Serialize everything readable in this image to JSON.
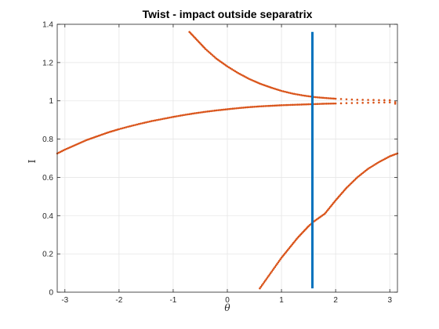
{
  "chart_data": {
    "type": "scatter",
    "title": "Twist - impact outside separatrix",
    "xlabel": "θ",
    "ylabel": "I",
    "xlim": [
      -3.14159,
      3.14159
    ],
    "ylim": [
      0,
      1.4
    ],
    "xticks": [
      -3,
      -2,
      -1,
      0,
      1,
      2,
      3
    ],
    "xtick_labels": [
      "-3",
      "-2",
      "-1",
      "0",
      "1",
      "2",
      "3"
    ],
    "yticks": [
      0,
      0.2,
      0.4,
      0.6,
      0.8,
      1,
      1.2,
      1.4
    ],
    "ytick_labels": [
      "0",
      "0.2",
      "0.4",
      "0.6",
      "0.8",
      "1",
      "1.2",
      "1.4"
    ],
    "grid": true,
    "colors": {
      "orbit": "#D95319",
      "impact_line": "#0072BD",
      "grid": "#E6E6E6",
      "axes": "#262626"
    },
    "impact_line": {
      "x": 1.5708,
      "y_range": [
        0.02,
        1.36
      ]
    },
    "series": [
      {
        "style": "dots",
        "points": [
          [
            -3.14,
            0.725
          ],
          [
            -3.0,
            0.745
          ],
          [
            -2.8,
            0.77
          ],
          [
            -2.6,
            0.795
          ],
          [
            -2.4,
            0.815
          ],
          [
            -2.2,
            0.835
          ],
          [
            -2.0,
            0.852
          ],
          [
            -1.8,
            0.867
          ],
          [
            -1.6,
            0.881
          ],
          [
            -1.4,
            0.894
          ],
          [
            -1.2,
            0.905
          ],
          [
            -1.0,
            0.916
          ],
          [
            -0.8,
            0.926
          ],
          [
            -0.6,
            0.935
          ],
          [
            -0.4,
            0.943
          ],
          [
            -0.2,
            0.95
          ],
          [
            0.0,
            0.956
          ],
          [
            0.2,
            0.962
          ],
          [
            0.4,
            0.967
          ],
          [
            0.6,
            0.971
          ],
          [
            0.8,
            0.974
          ],
          [
            1.0,
            0.977
          ],
          [
            1.2,
            0.979
          ],
          [
            1.4,
            0.981
          ],
          [
            1.6,
            0.983
          ],
          [
            1.8,
            0.985
          ],
          [
            2.0,
            0.986
          ],
          [
            2.2,
            0.988
          ],
          [
            2.4,
            0.989
          ],
          [
            2.6,
            0.99
          ],
          [
            2.8,
            0.991
          ],
          [
            3.0,
            0.992
          ],
          [
            3.1,
            0.993
          ]
        ]
      },
      {
        "style": "dots",
        "points": [
          [
            -0.7,
            1.36
          ],
          [
            -0.6,
            1.33
          ],
          [
            -0.5,
            1.3
          ],
          [
            -0.4,
            1.27
          ],
          [
            -0.3,
            1.245
          ],
          [
            -0.2,
            1.22
          ],
          [
            -0.1,
            1.2
          ],
          [
            0.0,
            1.18
          ],
          [
            0.2,
            1.145
          ],
          [
            0.4,
            1.115
          ],
          [
            0.6,
            1.09
          ],
          [
            0.8,
            1.07
          ],
          [
            1.0,
            1.052
          ],
          [
            1.2,
            1.038
          ],
          [
            1.4,
            1.028
          ],
          [
            1.6,
            1.02
          ],
          [
            1.8,
            1.015
          ],
          [
            2.0,
            1.011
          ],
          [
            2.2,
            1.008
          ],
          [
            2.4,
            1.006
          ],
          [
            2.6,
            1.005
          ],
          [
            2.8,
            1.004
          ],
          [
            3.0,
            1.003
          ],
          [
            3.1,
            0.985
          ]
        ]
      },
      {
        "style": "dots",
        "points": [
          [
            0.6,
            0.02
          ],
          [
            0.7,
            0.06
          ],
          [
            0.8,
            0.1
          ],
          [
            0.9,
            0.14
          ],
          [
            1.0,
            0.18
          ],
          [
            1.1,
            0.215
          ],
          [
            1.2,
            0.25
          ],
          [
            1.3,
            0.285
          ],
          [
            1.4,
            0.315
          ],
          [
            1.5,
            0.345
          ],
          [
            1.6,
            0.37
          ],
          [
            1.7,
            0.39
          ],
          [
            1.75,
            0.4
          ],
          [
            1.8,
            0.41
          ],
          [
            1.9,
            0.445
          ],
          [
            2.0,
            0.48
          ],
          [
            2.2,
            0.545
          ],
          [
            2.4,
            0.6
          ],
          [
            2.6,
            0.645
          ],
          [
            2.8,
            0.68
          ],
          [
            3.0,
            0.71
          ],
          [
            3.14,
            0.725
          ]
        ]
      }
    ]
  }
}
